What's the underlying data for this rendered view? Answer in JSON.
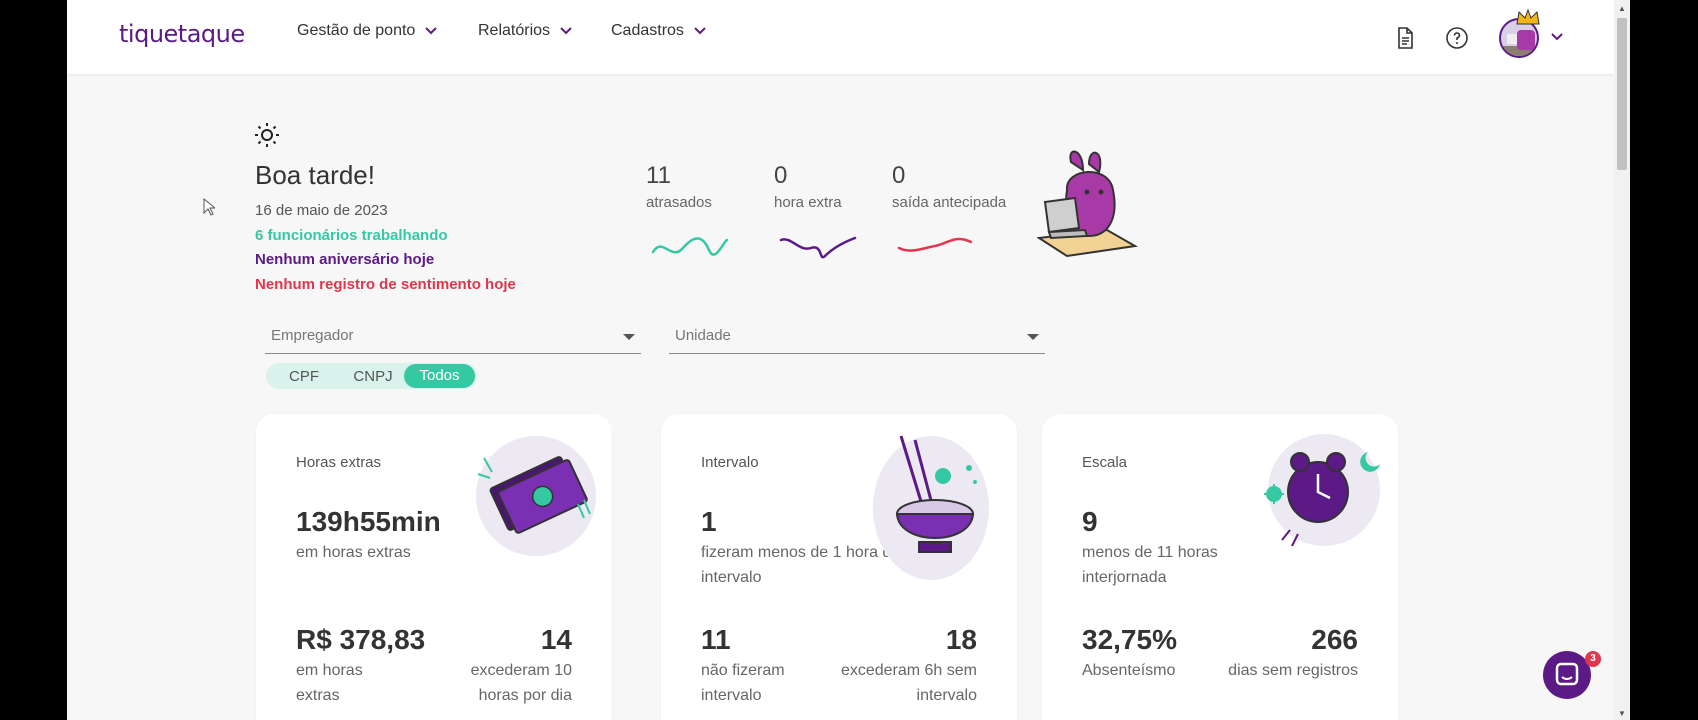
{
  "brand": {
    "logo_text": "tiquetaque",
    "primary": "#5b1a86",
    "accent": "#35c9a3",
    "danger": "#e0374e"
  },
  "nav": {
    "items": [
      {
        "label": "Gestão de ponto"
      },
      {
        "label": "Relatórios"
      },
      {
        "label": "Cadastros"
      }
    ],
    "icons": [
      "document-icon",
      "help-icon"
    ]
  },
  "greeting": {
    "title": "Boa tarde!",
    "date": "16 de maio de 2023",
    "working": "6 funcionários trabalhando",
    "birthdays": "Nenhum aniversário hoje",
    "mood": "Nenhum registro de sentimento hoje"
  },
  "stats": [
    {
      "value": "11",
      "label": "atrasados"
    },
    {
      "value": "0",
      "label": "hora extra"
    },
    {
      "value": "0",
      "label": "saída antecipada"
    }
  ],
  "filters": {
    "employer_placeholder": "Empregador",
    "unit_placeholder": "Unidade",
    "toggle": [
      "CPF",
      "CNPJ",
      "Todos"
    ],
    "toggle_selected": "Todos"
  },
  "cards": [
    {
      "title": "Horas extras",
      "big": "139h55min",
      "sub": "em horas extras",
      "b1": "R$ 378,83",
      "b1_sub": "em horas extras",
      "b2": "14",
      "b2_sub": "excederam 10 horas por dia"
    },
    {
      "title": "Intervalo",
      "big": "1",
      "sub": "fizeram menos de 1 hora de intervalo",
      "b1": "11",
      "b1_sub": "não fizeram intervalo",
      "b2": "18",
      "b2_sub": "excederam 6h sem intervalo"
    },
    {
      "title": "Escala",
      "big": "9",
      "sub": "menos de 11 horas interjornada",
      "b1": "32,75%",
      "b1_sub": "Absenteísmo",
      "b2": "266",
      "b2_sub": "dias sem registros"
    }
  ],
  "chat": {
    "badge": "3"
  }
}
